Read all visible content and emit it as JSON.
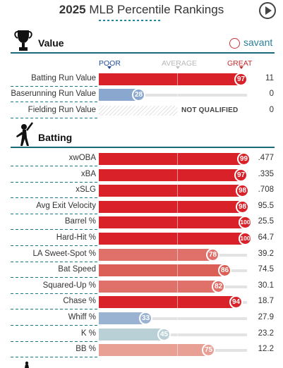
{
  "header": {
    "year": "2025",
    "title": "MLB Percentile Rankings",
    "play_icon": "play-circle-icon"
  },
  "sections": {
    "value": {
      "title": "Value",
      "icon": "trophy-icon"
    },
    "batting": {
      "title": "Batting",
      "icon": "batter-icon"
    }
  },
  "brand": {
    "label": "savant",
    "icon": "baseball-icon",
    "color": "#2a7f9a"
  },
  "scale": {
    "poor": "POOR",
    "average": "AVERAGE",
    "great": "GREAT"
  },
  "colors": {
    "great": "#d82129",
    "good": "#e0716a",
    "below": "#9bb3d3",
    "poor_light": "#b9d1d6",
    "salmon": "#e8a095"
  },
  "value_rows": [
    {
      "label": "Batting Run Value",
      "percentile": "97",
      "value": "11",
      "color": "#d82129"
    },
    {
      "label": "Baserunning Run Value",
      "percentile": "28",
      "value": "0",
      "color": "#8aa8cf"
    },
    {
      "label": "Fielding Run Value",
      "percentile": "",
      "value": "0",
      "status": "NOT QUALIFIED"
    }
  ],
  "batting_rows": [
    {
      "label": "xwOBA",
      "percentile": "99",
      "value": ".477",
      "color": "#d82129"
    },
    {
      "label": "xBA",
      "percentile": "97",
      "value": ".335",
      "color": "#d82129"
    },
    {
      "label": "xSLG",
      "percentile": "98",
      "value": ".708",
      "color": "#d82129"
    },
    {
      "label": "Avg Exit Velocity",
      "percentile": "98",
      "value": "95.5",
      "color": "#d82129"
    },
    {
      "label": "Barrel %",
      "percentile": "100",
      "value": "25.5",
      "color": "#d82129"
    },
    {
      "label": "Hard-Hit %",
      "percentile": "100",
      "value": "64.7",
      "color": "#d82129"
    },
    {
      "label": "LA Sweet-Spot %",
      "percentile": "78",
      "value": "39.2",
      "color": "#e0716a"
    },
    {
      "label": "Bat Speed",
      "percentile": "86",
      "value": "74.5",
      "color": "#dc5f57"
    },
    {
      "label": "Squared-Up %",
      "percentile": "82",
      "value": "30.1",
      "color": "#e0716a"
    },
    {
      "label": "Chase %",
      "percentile": "94",
      "value": "18.7",
      "color": "#d82129"
    },
    {
      "label": "Whiff %",
      "percentile": "33",
      "value": "27.9",
      "color": "#9bb3d3"
    },
    {
      "label": "K %",
      "percentile": "45",
      "value": "23.2",
      "color": "#b9d1d6"
    },
    {
      "label": "BB %",
      "percentile": "75",
      "value": "12.2",
      "color": "#e8a095"
    }
  ]
}
